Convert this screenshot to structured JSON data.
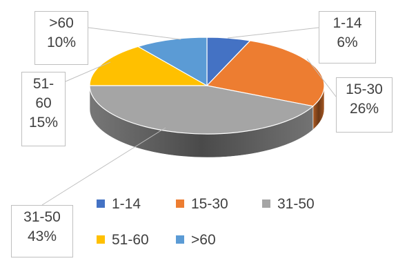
{
  "chart_data": {
    "type": "pie",
    "style": "3d",
    "title": "",
    "categories": [
      "1-14",
      "15-30",
      "31-50",
      "51-60",
      ">60"
    ],
    "values": [
      6,
      26,
      43,
      15,
      10
    ],
    "value_labels": [
      "6%",
      "26%",
      "43%",
      "15%",
      "10%"
    ],
    "colors": [
      "#4472C4",
      "#ED7D31",
      "#A5A5A5",
      "#FFC000",
      "#5B9BD5"
    ],
    "legend_position": "bottom"
  },
  "labels": {
    "s0": {
      "name": "1-14",
      "value": "6%"
    },
    "s1": {
      "name": "15-30",
      "value": "26%"
    },
    "s2": {
      "name": "31-50",
      "value": "43%"
    },
    "s3a": "51-",
    "s3b": "60",
    "s3v": "15%",
    "s4": {
      "name": ">60",
      "value": "10%"
    }
  }
}
